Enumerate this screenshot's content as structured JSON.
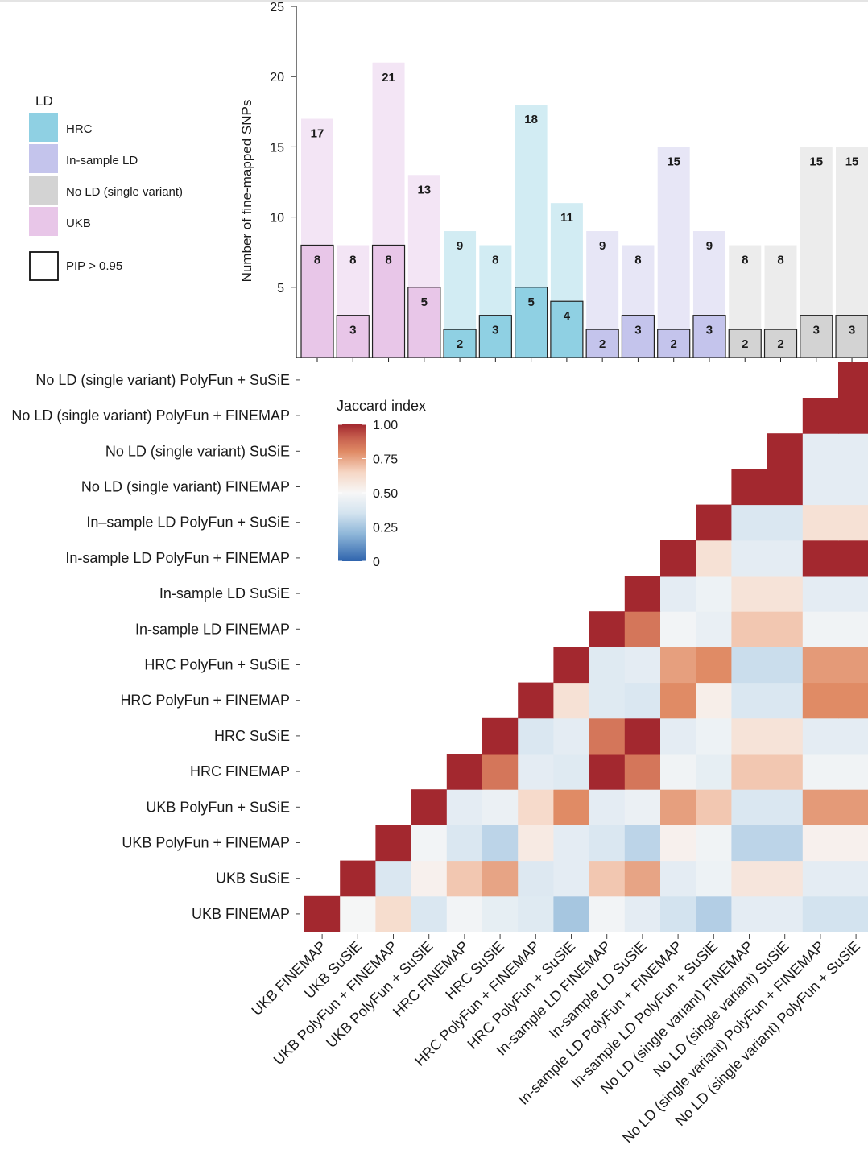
{
  "chart_data": [
    {
      "type": "bar",
      "ylabel": "Number of fine-mapped SNPs",
      "ylim": [
        0,
        25
      ],
      "yticks": [
        5,
        10,
        15,
        20,
        25
      ],
      "categories": [
        "UKB FINEMAP",
        "UKB SuSiE",
        "UKB PolyFun + FINEMAP",
        "UKB PolyFun + SuSiE",
        "HRC FINEMAP",
        "HRC SuSiE",
        "HRC PolyFun + FINEMAP",
        "HRC PolyFun + SuSiE",
        "In-sample LD FINEMAP",
        "In-sample LD SuSiE",
        "In-sample LD PolyFun + FINEMAP",
        "In-sample LD PolyFun + SuSiE",
        "No LD (single variant) FINEMAP",
        "No LD (single variant) SuSiE",
        "No LD (single variant) PolyFun + FINEMAP",
        "No LD (single variant) PolyFun + SuSiE"
      ],
      "ld_group": [
        "UKB",
        "UKB",
        "UKB",
        "UKB",
        "HRC",
        "HRC",
        "HRC",
        "HRC",
        "In-sample LD",
        "In-sample LD",
        "In-sample LD",
        "In-sample LD",
        "No LD (single variant)",
        "No LD (single variant)",
        "No LD (single variant)",
        "No LD (single variant)"
      ],
      "series": [
        {
          "name": "total",
          "values": [
            17,
            8,
            21,
            13,
            9,
            8,
            18,
            11,
            9,
            8,
            15,
            9,
            8,
            8,
            15,
            15
          ]
        },
        {
          "name": "PIP > 0.95",
          "values": [
            8,
            3,
            8,
            5,
            2,
            3,
            5,
            4,
            2,
            3,
            2,
            3,
            2,
            2,
            3,
            3
          ]
        }
      ],
      "legend": {
        "title": "LD",
        "placement": "left",
        "items": [
          {
            "label": "HRC",
            "dark": "#8fd0e3",
            "light": "#d2ecf3"
          },
          {
            "label": "In-sample LD",
            "dark": "#c4c4ec",
            "light": "#e7e6f6"
          },
          {
            "label": "No LD (single variant)",
            "dark": "#d3d3d3",
            "light": "#ececec"
          },
          {
            "label": "UKB",
            "dark": "#e8c6e8",
            "light": "#f3e5f5"
          }
        ],
        "outline_label": "PIP > 0.95"
      },
      "grid": false
    },
    {
      "type": "heatmap",
      "colorbar": {
        "title": "Jaccard index",
        "ticks": [
          "0",
          "0.25",
          "0.50",
          "0.75",
          "1.00"
        ],
        "range": [
          0,
          1
        ]
      },
      "labels": [
        "UKB FINEMAP",
        "UKB SuSiE",
        "UKB PolyFun + FINEMAP",
        "UKB PolyFun + SuSiE",
        "HRC FINEMAP",
        "HRC SuSiE",
        "HRC PolyFun + FINEMAP",
        "HRC PolyFun + SuSiE",
        "In-sample LD FINEMAP",
        "In-sample LD SuSiE",
        "In-sample LD PolyFun + FINEMAP",
        "In-sample LD PolyFun + SuSiE",
        "No LD (single variant) FINEMAP",
        "No LD (single variant) SuSiE",
        "No LD (single variant) PolyFun + FINEMAP",
        "No LD (single variant) PolyFun + SuSiE"
      ],
      "row_labels": [
        "UKB FINEMAP",
        "UKB SuSiE",
        "UKB PolyFun + FINEMAP",
        "UKB PolyFun + SuSiE",
        "HRC FINEMAP",
        "HRC SuSiE",
        "HRC PolyFun + FINEMAP",
        "HRC PolyFun + SuSiE",
        "In-sample LD FINEMAP",
        "In-sample LD SuSiE",
        "In-sample LD PolyFun + FINEMAP",
        "In–sample LD PolyFun + SuSiE",
        "No LD (single variant) FINEMAP",
        "No LD (single variant) SuSiE",
        "No LD (single variant) PolyFun + FINEMAP",
        "No LD (single variant) PolyFun + SuSiE"
      ],
      "values_upper_triangle": [
        [
          1,
          0.49,
          0.62,
          0.38,
          0.48,
          0.43,
          0.4,
          0.25,
          0.48,
          0.42,
          0.35,
          0.28,
          0.42,
          0.42,
          0.35,
          0.35
        ],
        [
          1,
          0.38,
          0.53,
          0.68,
          0.75,
          0.39,
          0.42,
          0.68,
          0.75,
          0.42,
          0.46,
          0.58,
          0.58,
          0.42,
          0.42
        ],
        [
          1,
          0.48,
          0.38,
          0.3,
          0.56,
          0.42,
          0.38,
          0.3,
          0.53,
          0.47,
          0.3,
          0.3,
          0.53,
          0.53
        ],
        [
          1,
          0.42,
          0.45,
          0.63,
          0.8,
          0.42,
          0.45,
          0.76,
          0.68,
          0.38,
          0.38,
          0.77,
          0.77
        ],
        [
          1,
          0.85,
          0.42,
          0.4,
          1,
          0.85,
          0.47,
          0.43,
          0.68,
          0.68,
          0.47,
          0.47
        ],
        [
          1,
          0.38,
          0.42,
          0.85,
          1,
          0.42,
          0.46,
          0.59,
          0.59,
          0.42,
          0.42
        ],
        [
          1,
          0.6,
          0.4,
          0.38,
          0.8,
          0.54,
          0.38,
          0.38,
          0.8,
          0.8
        ],
        [
          1,
          0.4,
          0.42,
          0.76,
          0.8,
          0.33,
          0.33,
          0.77,
          0.77
        ],
        [
          1,
          0.85,
          0.48,
          0.44,
          0.68,
          0.68,
          0.47,
          0.47
        ],
        [
          1,
          0.42,
          0.46,
          0.59,
          0.59,
          0.42,
          0.42
        ],
        [
          1,
          0.6,
          0.42,
          0.42,
          1,
          1
        ],
        [
          1,
          0.38,
          0.38,
          0.6,
          0.6
        ],
        [
          1,
          1,
          0.42,
          0.42
        ],
        [
          1,
          0.42,
          0.42
        ],
        [
          1,
          1
        ],
        [
          1
        ]
      ]
    }
  ]
}
